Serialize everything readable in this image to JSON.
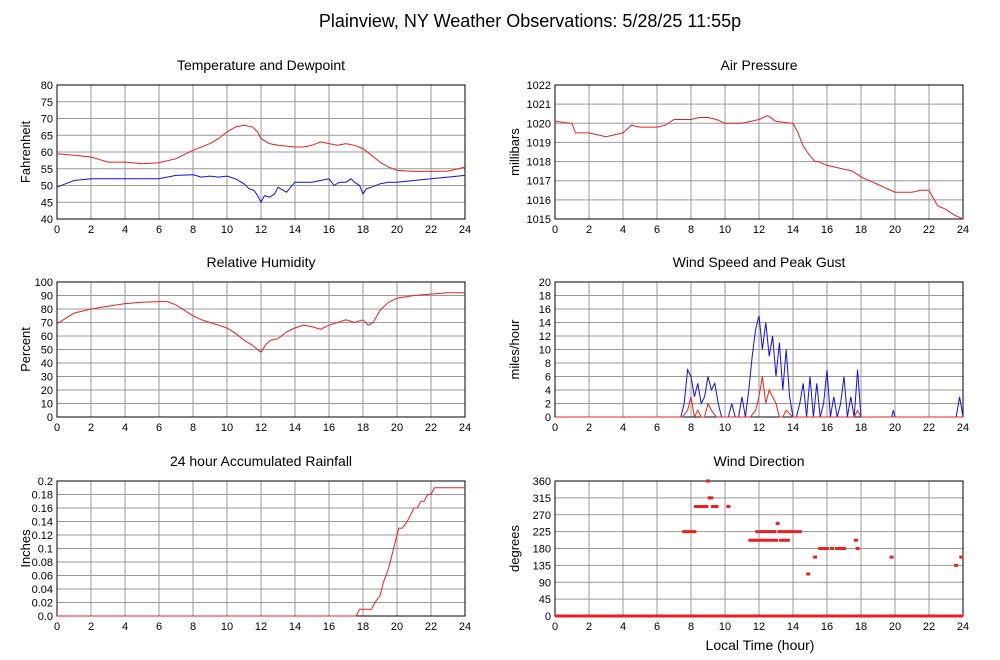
{
  "title": "Plainview, NY Weather Observations: 5/28/25 11:55p",
  "x_axis_label": "Local Time (hour)",
  "chart_data": [
    {
      "id": "temp",
      "type": "line",
      "title": "Temperature and Dewpoint",
      "ylabel": "Fahrenheit",
      "xlim": [
        0,
        24
      ],
      "ylim": [
        40,
        80
      ],
      "xticks": [
        0,
        2,
        4,
        6,
        8,
        10,
        12,
        14,
        16,
        18,
        20,
        22,
        24
      ],
      "yticks": [
        40,
        45,
        50,
        55,
        60,
        65,
        70,
        75,
        80
      ],
      "grid": true,
      "series": [
        {
          "color": "#e8201f",
          "x": [
            0,
            1,
            2,
            3,
            4,
            5,
            6,
            7,
            8,
            9,
            9.5,
            10,
            10.5,
            11,
            11.5,
            11.8,
            12,
            12.5,
            13,
            14,
            14.5,
            15,
            15.5,
            16,
            16.5,
            17,
            17.5,
            18,
            18.5,
            19,
            19.5,
            20,
            21,
            22,
            23,
            24
          ],
          "y": [
            59.5,
            59,
            58.5,
            57,
            57,
            56.5,
            56.8,
            58,
            60.5,
            62.5,
            64,
            66,
            67.5,
            68,
            67.5,
            66,
            64,
            62.5,
            62,
            61.5,
            61.5,
            62,
            63,
            62.5,
            62,
            62.5,
            62,
            61,
            59,
            57,
            55.5,
            54.5,
            54.2,
            54.2,
            54.3,
            55.5
          ]
        },
        {
          "color": "#1010e8",
          "x": [
            0,
            0.5,
            1,
            2,
            3,
            4,
            5,
            6,
            7,
            8,
            8.5,
            9,
            9.5,
            10,
            10.5,
            11,
            11.3,
            11.6,
            11.8,
            12,
            12.2,
            12.5,
            12.8,
            13,
            13.5,
            14,
            14.5,
            15,
            15.5,
            16,
            16.3,
            16.6,
            17,
            17.3,
            17.5,
            17.8,
            18,
            18.2,
            18.5,
            19,
            19.5,
            20,
            21,
            22,
            23,
            24
          ],
          "y": [
            49.5,
            50.5,
            51.5,
            52,
            52,
            52,
            52,
            52,
            53,
            53.2,
            52.5,
            52.8,
            52.5,
            52.8,
            52,
            50.5,
            49,
            48.5,
            47,
            45,
            47,
            46.5,
            47.5,
            49.5,
            48,
            51,
            51,
            51,
            51.5,
            52,
            50,
            51,
            51,
            52,
            51,
            50,
            47.5,
            49,
            49.5,
            50.5,
            51,
            51,
            51.5,
            52,
            52.5,
            53
          ]
        }
      ]
    },
    {
      "id": "pressure",
      "type": "line",
      "title": "Air Pressure",
      "ylabel": "millibars",
      "xlim": [
        0,
        24
      ],
      "ylim": [
        1015,
        1022
      ],
      "xticks": [
        0,
        2,
        4,
        6,
        8,
        10,
        12,
        14,
        16,
        18,
        20,
        22,
        24
      ],
      "yticks": [
        1015,
        1016,
        1017,
        1018,
        1019,
        1020,
        1021,
        1022
      ],
      "grid": true,
      "series": [
        {
          "color": "#e8201f",
          "x": [
            0,
            1,
            1.2,
            2,
            3,
            4,
            4.5,
            5,
            6,
            6.5,
            7,
            8,
            8.5,
            9,
            9.5,
            10,
            11,
            12,
            12.5,
            13,
            14,
            14.3,
            14.6,
            15,
            15.3,
            15.5,
            16,
            16.5,
            17,
            17.5,
            18,
            18.5,
            19,
            19.5,
            20,
            21,
            21.5,
            22,
            22.5,
            23,
            23.5,
            24
          ],
          "y": [
            1020.1,
            1020,
            1019.5,
            1019.5,
            1019.3,
            1019.5,
            1019.9,
            1019.8,
            1019.8,
            1019.9,
            1020.2,
            1020.2,
            1020.3,
            1020.3,
            1020.2,
            1020,
            1020,
            1020.2,
            1020.4,
            1020.1,
            1020,
            1019.5,
            1018.8,
            1018.3,
            1018,
            1018,
            1017.8,
            1017.7,
            1017.6,
            1017.5,
            1017.2,
            1017,
            1016.8,
            1016.6,
            1016.4,
            1016.4,
            1016.5,
            1016.5,
            1015.7,
            1015.5,
            1015.2,
            1015
          ]
        }
      ]
    },
    {
      "id": "humidity",
      "type": "line",
      "title": "Relative Humidity",
      "ylabel": "Percent",
      "xlim": [
        0,
        24
      ],
      "ylim": [
        0,
        100
      ],
      "xticks": [
        0,
        2,
        4,
        6,
        8,
        10,
        12,
        14,
        16,
        18,
        20,
        22,
        24
      ],
      "yticks": [
        0,
        10,
        20,
        30,
        40,
        50,
        60,
        70,
        80,
        90,
        100
      ],
      "grid": true,
      "series": [
        {
          "color": "#e8201f",
          "x": [
            0,
            0.5,
            1,
            2,
            3,
            4,
            5,
            6,
            6.5,
            7,
            7.5,
            8,
            8.5,
            9,
            10,
            10.5,
            11,
            11.5,
            11.8,
            12,
            12.3,
            12.6,
            13,
            13.5,
            14,
            14.5,
            15,
            15.5,
            16,
            16.5,
            17,
            17.5,
            18,
            18.3,
            18.6,
            19,
            19.5,
            20,
            21,
            22,
            23,
            24
          ],
          "y": [
            69,
            73,
            77,
            80,
            82,
            84,
            85,
            85.5,
            85.5,
            83,
            79,
            75,
            72,
            70,
            66,
            62,
            57,
            53,
            50,
            48,
            54,
            57,
            58,
            63,
            66,
            68,
            67,
            65,
            68,
            70,
            72,
            70,
            72,
            68,
            70,
            79,
            85,
            88,
            90,
            91,
            92,
            92
          ]
        }
      ]
    },
    {
      "id": "wind",
      "type": "line",
      "title": "Wind Speed and Peak Gust",
      "ylabel": "miles/hour",
      "xlim": [
        0,
        24
      ],
      "ylim": [
        0,
        20
      ],
      "xticks": [
        0,
        2,
        4,
        6,
        8,
        10,
        12,
        14,
        16,
        18,
        20,
        22,
        24
      ],
      "yticks": [
        0,
        2,
        4,
        6,
        8,
        10,
        12,
        14,
        16,
        18,
        20
      ],
      "grid": true,
      "series": [
        {
          "color": "#1010e8",
          "x": [
            0,
            7.4,
            7.6,
            7.8,
            8,
            8.2,
            8.4,
            8.6,
            8.8,
            9,
            9.2,
            9.4,
            9.6,
            9.8,
            10,
            10.2,
            10.4,
            10.6,
            10.8,
            11,
            11.2,
            11.4,
            11.6,
            11.8,
            12,
            12.2,
            12.4,
            12.6,
            12.8,
            13,
            13.2,
            13.4,
            13.6,
            13.8,
            14,
            14.2,
            14.4,
            14.6,
            14.8,
            15,
            15.2,
            15.4,
            15.6,
            15.8,
            16,
            16.2,
            16.4,
            16.6,
            16.8,
            17,
            17.2,
            17.4,
            17.6,
            17.8,
            18,
            19.8,
            19.9,
            20,
            23.6,
            23.8,
            24
          ],
          "y": [
            0,
            0,
            2,
            7,
            6,
            3,
            5,
            2,
            3,
            6,
            4,
            5,
            2,
            0,
            0,
            0,
            2,
            0,
            0,
            3,
            0,
            4,
            9,
            13,
            15,
            10,
            14,
            9,
            12,
            6,
            11,
            4,
            10,
            3,
            0,
            0,
            2,
            5,
            0,
            6,
            0,
            5,
            0,
            2,
            7,
            0,
            3,
            0,
            2,
            6,
            0,
            3,
            0,
            7,
            0,
            0,
            1,
            0,
            0,
            3,
            0
          ]
        },
        {
          "color": "#e8201f",
          "x": [
            0,
            7.5,
            7.8,
            8,
            8.2,
            8.4,
            8.6,
            8.8,
            9,
            9.2,
            9.5,
            11,
            11.5,
            11.8,
            12,
            12.2,
            12.4,
            12.6,
            12.8,
            13,
            13.2,
            13.4,
            13.6,
            14,
            17.6,
            17.8,
            18,
            24
          ],
          "y": [
            0,
            0,
            1,
            3,
            0,
            1,
            0,
            0,
            2,
            1,
            0,
            0,
            0,
            1,
            3,
            6,
            2,
            4,
            3,
            2,
            0,
            0,
            1,
            0,
            0,
            1,
            0,
            0
          ]
        }
      ]
    },
    {
      "id": "rain",
      "type": "line",
      "title": "24 hour Accumulated Rainfall",
      "ylabel": "Inches",
      "xlim": [
        0,
        24
      ],
      "ylim": [
        0,
        0.2
      ],
      "xticks": [
        0,
        2,
        4,
        6,
        8,
        10,
        12,
        14,
        16,
        18,
        20,
        22,
        24
      ],
      "yticks": [
        0.0,
        0.02,
        0.04,
        0.06,
        0.08,
        0.1,
        0.12,
        0.14,
        0.16,
        0.18,
        0.2
      ],
      "grid": true,
      "series": [
        {
          "color": "#e8201f",
          "x": [
            0,
            17.6,
            17.8,
            18.5,
            18.7,
            19,
            19.2,
            19.5,
            19.7,
            19.9,
            20.1,
            20.3,
            20.6,
            20.8,
            21,
            21.2,
            21.4,
            21.6,
            21.8,
            22,
            22.2,
            22.4,
            22.6,
            24
          ],
          "y": [
            0,
            0,
            0.01,
            0.01,
            0.02,
            0.03,
            0.05,
            0.07,
            0.09,
            0.11,
            0.13,
            0.13,
            0.14,
            0.15,
            0.16,
            0.16,
            0.17,
            0.17,
            0.18,
            0.18,
            0.19,
            0.19,
            0.19,
            0.19
          ]
        }
      ]
    },
    {
      "id": "winddir",
      "type": "scatter",
      "title": "Wind Direction",
      "ylabel": "degrees",
      "xlabel": "Local Time (hour)",
      "xlim": [
        0,
        24
      ],
      "ylim": [
        0,
        360
      ],
      "xticks": [
        0,
        2,
        4,
        6,
        8,
        10,
        12,
        14,
        16,
        18,
        20,
        22,
        24
      ],
      "yticks": [
        0,
        45,
        90,
        135,
        180,
        225,
        270,
        315,
        360
      ],
      "grid": true,
      "baseline_zero": true,
      "series": [
        {
          "color": "#e8201f",
          "x": [
            7.6,
            7.8,
            8.0,
            8.2,
            8.3,
            8.4,
            8.5,
            8.6,
            8.7,
            8.8,
            8.9,
            9.0,
            9.1,
            9.2,
            9.3,
            9.5,
            10.2,
            11.5,
            11.7,
            11.8,
            11.9,
            12.0,
            12.1,
            12.2,
            12.3,
            12.4,
            12.5,
            12.6,
            12.7,
            12.8,
            12.9,
            13.0,
            13.1,
            13.2,
            13.3,
            13.4,
            13.5,
            13.6,
            13.7,
            13.8,
            14.0,
            14.2,
            14.4,
            14.9,
            15.3,
            15.6,
            15.8,
            16.0,
            16.3,
            16.6,
            16.8,
            17.0,
            17.7,
            17.8,
            19.8,
            23.6,
            23.9
          ],
          "y": [
            225,
            225,
            225,
            225,
            292,
            292,
            292,
            292,
            292,
            292,
            292,
            360,
            315,
            315,
            292,
            292,
            292,
            202,
            202,
            202,
            225,
            202,
            225,
            202,
            225,
            202,
            225,
            202,
            225,
            202,
            225,
            202,
            247,
            225,
            202,
            225,
            202,
            225,
            202,
            225,
            225,
            225,
            225,
            112,
            157,
            180,
            180,
            180,
            180,
            180,
            180,
            180,
            202,
            180,
            157,
            135,
            157
          ]
        }
      ]
    }
  ]
}
